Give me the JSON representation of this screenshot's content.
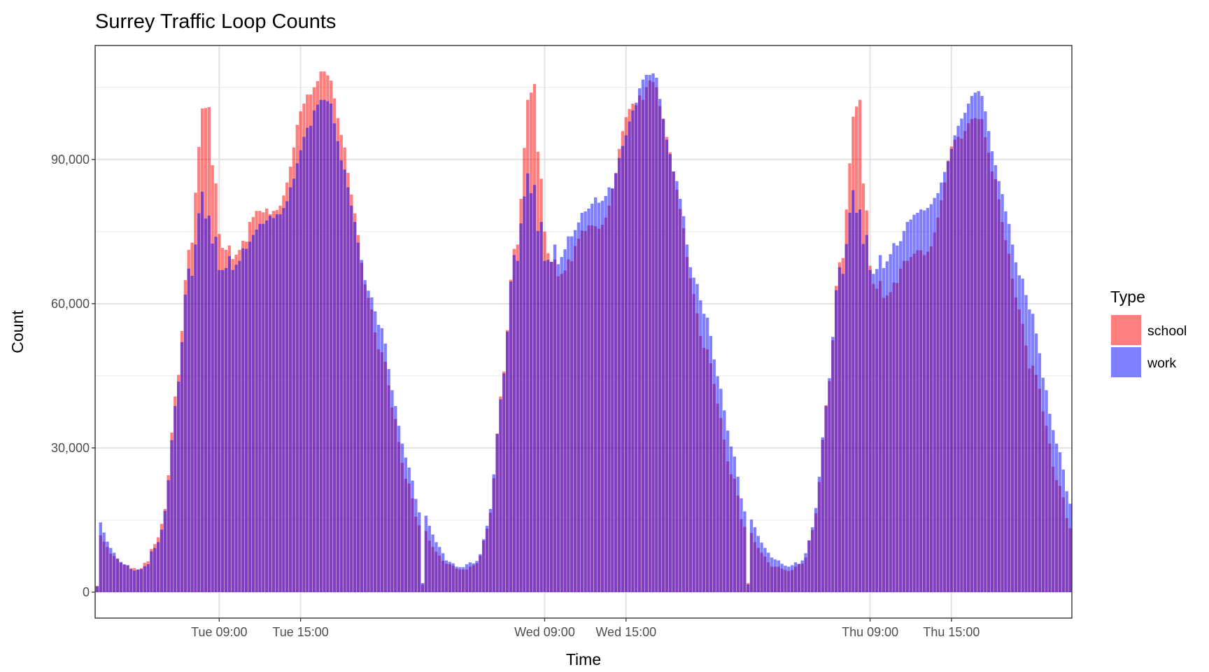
{
  "chart_data": {
    "type": "bar",
    "title": "Surrey Traffic Loop Counts",
    "xlabel": "Time",
    "ylabel": "Count",
    "x_start": "Tue 00:00",
    "interval_minutes": 15,
    "x_range_hours_from_start": [
      -0.15,
      71.88
    ],
    "ylim": [
      -5400,
      113700
    ],
    "grid": true,
    "position": "identity (overlapping, semi-transparent)",
    "y_ticks": [
      {
        "value": 0,
        "label": "0"
      },
      {
        "value": 30000,
        "label": "30,000"
      },
      {
        "value": 60000,
        "label": "60,000"
      },
      {
        "value": 90000,
        "label": "90,000"
      }
    ],
    "y_minor_ticks": [
      15000,
      45000,
      75000,
      105000
    ],
    "x_ticks": [
      {
        "hour": 9,
        "label": "Tue 09:00"
      },
      {
        "hour": 15,
        "label": "Tue 15:00"
      },
      {
        "hour": 33,
        "label": "Wed 09:00"
      },
      {
        "hour": 39,
        "label": "Wed 15:00"
      },
      {
        "hour": 57,
        "label": "Thu 09:00"
      },
      {
        "hour": 63,
        "label": "Thu 15:00"
      }
    ],
    "legend": {
      "title": "Type",
      "placement": "right"
    },
    "series": [
      {
        "name": "school",
        "color": "#ff0000",
        "opacity": 0.5,
        "values": [
          1300,
          11800,
          10500,
          9400,
          8000,
          7500,
          6900,
          6100,
          5700,
          5600,
          5000,
          5000,
          4700,
          5000,
          6100,
          6400,
          9000,
          10000,
          11400,
          14200,
          17300,
          24300,
          33200,
          40700,
          45200,
          54300,
          64900,
          71200,
          72700,
          83100,
          92600,
          100600,
          100700,
          100900,
          88800,
          85000,
          74500,
          71600,
          71200,
          72100,
          69300,
          70200,
          71200,
          73100,
          72900,
          77000,
          78000,
          79300,
          79300,
          79000,
          79800,
          78600,
          79300,
          79500,
          80400,
          82500,
          85200,
          88500,
          92500,
          97200,
          100000,
          101600,
          103500,
          103500,
          105000,
          106300,
          108300,
          108300,
          107500,
          106400,
          102700,
          98600,
          95100,
          92500,
          87200,
          82700,
          78800,
          74300,
          68500,
          64000,
          61200,
          58800,
          54000,
          50500,
          49900,
          47900,
          43000,
          38400,
          36000,
          31200,
          26900,
          23600,
          22600,
          19500,
          15700,
          13900,
          1600,
          12700,
          10700,
          9400,
          8400,
          7600,
          6500,
          5900,
          5800,
          5500,
          4900,
          4700,
          4700,
          4700,
          5300,
          5600,
          6000,
          7600,
          10700,
          13200,
          16500,
          23700,
          33000,
          40700,
          45900,
          54500,
          65000,
          71400,
          72300,
          81800,
          92400,
          102400,
          103900,
          105700,
          91600,
          86000,
          75000,
          70500,
          68700,
          69200,
          65700,
          66200,
          66900,
          69200,
          68800,
          72000,
          73500,
          75200,
          75100,
          76300,
          76300,
          76100,
          75600,
          76400,
          77900,
          80400,
          83900,
          87200,
          92200,
          95900,
          98800,
          100500,
          101600,
          101300,
          103300,
          102400,
          105000,
          106400,
          106100,
          105000,
          101100,
          98500,
          94700,
          91500,
          87500,
          83700,
          79700,
          75700,
          69700,
          65300,
          62000,
          58000,
          53300,
          50800,
          50500,
          47600,
          43300,
          39200,
          36200,
          31700,
          27200,
          24500,
          23600,
          20100,
          15200,
          13600,
          1900,
          12300,
          10400,
          9200,
          8200,
          7400,
          6200,
          5300,
          5300,
          5300,
          4900,
          4600,
          4400,
          4600,
          5300,
          5800,
          5900,
          7200,
          10700,
          12900,
          16400,
          22900,
          31700,
          38900,
          43900,
          52400,
          63700,
          68600,
          69500,
          79600,
          89200,
          98900,
          101000,
          102400,
          85000,
          79400,
          67900,
          64100,
          63100,
          64700,
          61200,
          61700,
          62400,
          64400,
          64300,
          67300,
          68900,
          68900,
          69700,
          70400,
          71100,
          71100,
          70100,
          70800,
          71900,
          74800,
          77900,
          81500,
          85200,
          89800,
          92700,
          94100,
          94700,
          94300,
          95900,
          97500,
          98400,
          98600,
          98400,
          98400,
          94600,
          91400,
          87500,
          85900,
          81700,
          77000,
          73200,
          70400,
          65200,
          61300,
          58800,
          55800,
          51300,
          46500,
          47100,
          45200,
          42300,
          37600,
          34600,
          30900,
          26100,
          23300,
          22100,
          19700,
          15400,
          13300
        ]
      },
      {
        "name": "work",
        "color": "#0000ff",
        "opacity": 0.5,
        "values": [
          1200,
          14500,
          12400,
          10500,
          9200,
          8200,
          7000,
          6300,
          5800,
          5600,
          4800,
          4500,
          4700,
          4800,
          5400,
          5800,
          8500,
          9200,
          10400,
          13000,
          16900,
          23300,
          31600,
          38700,
          43800,
          52000,
          61900,
          67300,
          65800,
          72300,
          78800,
          83300,
          77700,
          78300,
          72500,
          73900,
          67000,
          67000,
          67400,
          69900,
          67000,
          68100,
          68900,
          71500,
          71400,
          72900,
          74300,
          75400,
          76600,
          76600,
          77300,
          78300,
          77800,
          78600,
          78600,
          79900,
          81300,
          84200,
          86000,
          89200,
          91900,
          94700,
          96600,
          97000,
          100200,
          101400,
          102400,
          102400,
          102100,
          101600,
          97500,
          93800,
          89800,
          87900,
          84200,
          80400,
          77000,
          72700,
          69100,
          64900,
          62700,
          61300,
          58400,
          55600,
          54900,
          51700,
          46400,
          42000,
          38700,
          34600,
          30900,
          28000,
          25900,
          23200,
          19400,
          16600,
          1900,
          15900,
          13800,
          12000,
          10400,
          9400,
          8100,
          6600,
          6300,
          6000,
          5300,
          5200,
          5200,
          5800,
          6200,
          6000,
          6500,
          7900,
          11000,
          13800,
          17300,
          24500,
          32900,
          40100,
          45500,
          54200,
          64600,
          70100,
          68900,
          76700,
          82300,
          87100,
          83000,
          84700,
          75100,
          77000,
          68900,
          69100,
          68700,
          72300,
          68200,
          69700,
          71300,
          74000,
          74000,
          75300,
          76900,
          78900,
          79200,
          79800,
          80800,
          82100,
          81000,
          81400,
          82400,
          84200,
          84000,
          87100,
          90300,
          92800,
          95000,
          97900,
          100200,
          101800,
          104800,
          106600,
          107600,
          107600,
          107900,
          107000,
          102600,
          98400,
          94100,
          91100,
          87500,
          85500,
          81800,
          78200,
          72300,
          67600,
          65400,
          64100,
          60700,
          57900,
          57100,
          53300,
          48400,
          44900,
          42300,
          37800,
          33600,
          30300,
          28200,
          24000,
          19500,
          16800,
          1600,
          15100,
          13500,
          11700,
          10300,
          9200,
          8200,
          7200,
          6800,
          6600,
          5900,
          5500,
          5300,
          5600,
          6200,
          5900,
          6600,
          8100,
          10800,
          13500,
          17500,
          24000,
          32200,
          38700,
          44500,
          53100,
          62800,
          67600,
          66200,
          72400,
          78900,
          83600,
          78900,
          79600,
          72400,
          74300,
          67000,
          66200,
          67200,
          70100,
          67400,
          68800,
          70300,
          72600,
          72100,
          73000,
          75100,
          77000,
          77500,
          78500,
          78900,
          79600,
          79400,
          79900,
          80700,
          82000,
          83000,
          85200,
          87400,
          89600,
          92200,
          95000,
          97000,
          98500,
          99700,
          101600,
          103200,
          103900,
          104200,
          103200,
          100000,
          95900,
          91700,
          88800,
          85500,
          82800,
          79200,
          76600,
          72300,
          68600,
          65900,
          65200,
          61800,
          58800,
          57900,
          53800,
          49700,
          44600,
          42000,
          37100,
          33700,
          30900,
          29100,
          25500,
          21000,
          18400
        ]
      }
    ]
  }
}
